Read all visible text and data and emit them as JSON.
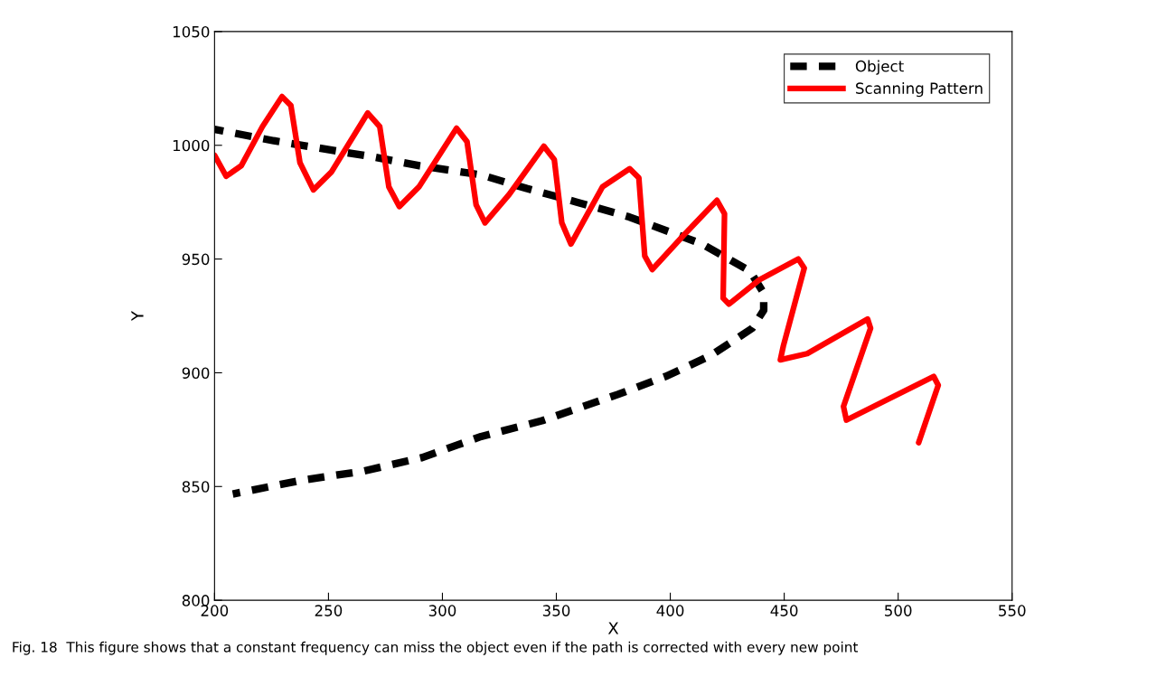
{
  "chart_data": {
    "type": "line",
    "xlabel": "X",
    "ylabel": "Y",
    "xlim": [
      200,
      550
    ],
    "xticks": [
      200,
      250,
      300,
      350,
      400,
      450,
      500,
      550
    ],
    "ylim": [
      800,
      1050
    ],
    "yticks": [
      800,
      850,
      900,
      950,
      1000,
      1050
    ],
    "grid": false,
    "legend": "top right",
    "marker": "none",
    "series": [
      {
        "name": "Object",
        "color": "#000000",
        "line_style": "dashed",
        "x": [
          200,
          226,
          269,
          290,
          317,
          337,
          359,
          382,
          414,
          435,
          441,
          441,
          436,
          418,
          398,
          377,
          356,
          344,
          317,
          291,
          265,
          238,
          208
        ],
        "values": [
          1007,
          1002,
          995,
          991,
          987,
          981,
          975,
          968.5,
          956.6,
          944.7,
          935,
          927.5,
          919.6,
          907.7,
          898.4,
          890.5,
          883.2,
          879,
          872,
          862.7,
          856.7,
          852.7,
          846.7
        ]
      },
      {
        "name": "Scanning Pattern",
        "color": "#ff0000",
        "line_style": "solid",
        "x": [
          200,
          205.1,
          211.7,
          221,
          229.6,
          233.5,
          237.5,
          243.4,
          251.4,
          267.2,
          272.5,
          276.5,
          281.1,
          289.7,
          306.2,
          310.8,
          314.8,
          318.7,
          329.3,
          344.5,
          349.1,
          352.4,
          356.4,
          370.3,
          382.2,
          386.2,
          388.8,
          392.1,
          406,
          420.5,
          423.8,
          423.2,
          425.8,
          439,
          456.2,
          458.8,
          449.6,
          448.3,
          460.1,
          486.6,
          487.9,
          476,
          477.3,
          489.2,
          515.6,
          517.6,
          509
        ],
        "values": [
          995.6,
          986.4,
          991,
          1008.2,
          1021.4,
          1017.5,
          992.3,
          980.4,
          988.4,
          1014.2,
          1008.2,
          981.7,
          973.1,
          981.7,
          1007.5,
          1001.6,
          973.8,
          965.9,
          978.4,
          999.6,
          993.7,
          965.9,
          956.6,
          981.8,
          989.7,
          985.7,
          951.3,
          945.4,
          960.6,
          975.8,
          969.9,
          932.8,
          930.2,
          940.8,
          950,
          946,
          911.7,
          905.7,
          908.4,
          923.6,
          919.6,
          885.2,
          879.2,
          885.2,
          898.4,
          894.5,
          869.3
        ]
      }
    ],
    "annotations": [
      "Fig. 18  This figure shows that a constant frequency can miss the object even if the path is corrected with every new point"
    ]
  }
}
